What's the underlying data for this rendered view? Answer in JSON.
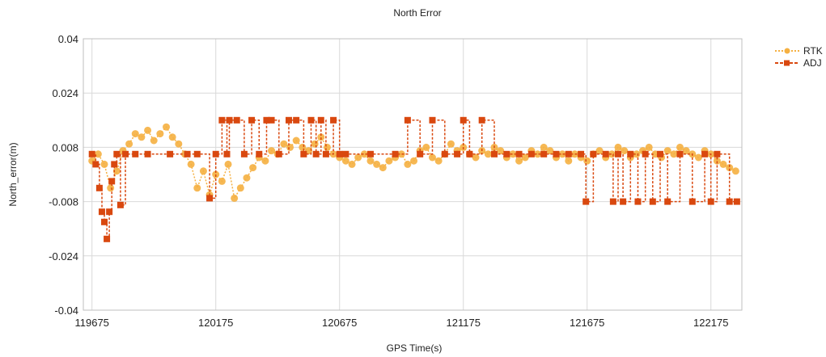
{
  "chart_data": {
    "type": "line",
    "title": "North Error",
    "xlabel": "GPS Time(s)",
    "ylabel": "North_error(m)",
    "xlim": [
      119640,
      122300
    ],
    "ylim": [
      -0.04,
      0.04
    ],
    "x_ticks": [
      119675,
      120175,
      120675,
      121175,
      121675,
      122175
    ],
    "x_tick_labels": [
      "119675",
      "120175",
      "120675",
      "121175",
      "121675",
      "122175"
    ],
    "y_ticks": [
      -0.04,
      -0.024,
      -0.008,
      0.008,
      0.024,
      0.04
    ],
    "y_tick_labels": [
      "-0.04",
      "-0.024",
      "-0.008",
      "0.008",
      "0.024",
      "0.04"
    ],
    "grid": true,
    "legend_position": "top-right",
    "series": [
      {
        "name": "RTK",
        "color": "#f5b041",
        "line_style": "dotted",
        "marker": "circle",
        "x": [
          119675,
          119700,
          119725,
          119750,
          119775,
          119800,
          119825,
          119850,
          119875,
          119900,
          119925,
          119950,
          119975,
          120000,
          120025,
          120050,
          120075,
          120100,
          120125,
          120150,
          120175,
          120200,
          120225,
          120250,
          120275,
          120300,
          120325,
          120350,
          120375,
          120400,
          120425,
          120450,
          120475,
          120500,
          120525,
          120550,
          120575,
          120600,
          120625,
          120650,
          120675,
          120700,
          120725,
          120750,
          120775,
          120800,
          120825,
          120850,
          120875,
          120900,
          120925,
          120950,
          120975,
          121000,
          121025,
          121050,
          121075,
          121100,
          121125,
          121150,
          121175,
          121200,
          121225,
          121250,
          121275,
          121300,
          121325,
          121350,
          121375,
          121400,
          121425,
          121450,
          121475,
          121500,
          121525,
          121550,
          121575,
          121600,
          121625,
          121650,
          121675,
          121700,
          121725,
          121750,
          121775,
          121800,
          121825,
          121850,
          121875,
          121900,
          121925,
          121950,
          121975,
          122000,
          122025,
          122050,
          122075,
          122100,
          122125,
          122150,
          122175,
          122200,
          122225,
          122250,
          122275
        ],
        "y": [
          0.004,
          0.006,
          0.003,
          -0.004,
          0.001,
          0.007,
          0.009,
          0.012,
          0.011,
          0.013,
          0.01,
          0.012,
          0.014,
          0.011,
          0.009,
          0.006,
          0.003,
          -0.004,
          0.001,
          -0.006,
          0.0,
          -0.002,
          0.003,
          -0.007,
          -0.004,
          -0.001,
          0.002,
          0.005,
          0.004,
          0.007,
          0.006,
          0.009,
          0.008,
          0.01,
          0.008,
          0.007,
          0.009,
          0.011,
          0.008,
          0.006,
          0.005,
          0.004,
          0.003,
          0.005,
          0.006,
          0.004,
          0.003,
          0.002,
          0.004,
          0.005,
          0.006,
          0.003,
          0.004,
          0.007,
          0.008,
          0.005,
          0.004,
          0.006,
          0.009,
          0.007,
          0.008,
          0.006,
          0.005,
          0.007,
          0.006,
          0.008,
          0.007,
          0.005,
          0.006,
          0.004,
          0.005,
          0.007,
          0.006,
          0.008,
          0.007,
          0.005,
          0.006,
          0.004,
          0.006,
          0.005,
          0.004,
          0.006,
          0.007,
          0.005,
          0.006,
          0.008,
          0.007,
          0.005,
          0.006,
          0.007,
          0.008,
          0.006,
          0.005,
          0.007,
          0.006,
          0.008,
          0.007,
          0.006,
          0.005,
          0.007,
          0.006,
          0.004,
          0.003,
          0.002,
          0.001
        ]
      },
      {
        "name": "ADJ",
        "color": "#d9480f",
        "line_style": "dashed",
        "marker": "square",
        "x": [
          119675,
          119690,
          119705,
          119715,
          119725,
          119735,
          119745,
          119755,
          119765,
          119775,
          119790,
          119810,
          119850,
          119900,
          119990,
          120060,
          120100,
          120150,
          120175,
          120200,
          120220,
          120230,
          120260,
          120290,
          120320,
          120350,
          120380,
          120400,
          120430,
          120470,
          120500,
          120530,
          120560,
          120580,
          120600,
          120620,
          120650,
          120675,
          120700,
          120800,
          120900,
          120950,
          121000,
          121050,
          121100,
          121150,
          121175,
          121200,
          121250,
          121300,
          121350,
          121400,
          121450,
          121500,
          121550,
          121600,
          121650,
          121670,
          121700,
          121750,
          121780,
          121800,
          121820,
          121850,
          121880,
          121910,
          121940,
          121970,
          122000,
          122050,
          122100,
          122150,
          122175,
          122200,
          122250,
          122280
        ],
        "y": [
          0.006,
          0.003,
          -0.004,
          -0.011,
          -0.014,
          -0.019,
          -0.011,
          -0.002,
          0.003,
          0.006,
          -0.009,
          0.006,
          0.006,
          0.006,
          0.006,
          0.006,
          0.006,
          -0.007,
          0.006,
          0.016,
          0.006,
          0.016,
          0.016,
          0.006,
          0.016,
          0.006,
          0.016,
          0.016,
          0.006,
          0.016,
          0.016,
          0.006,
          0.016,
          0.006,
          0.016,
          0.006,
          0.016,
          0.006,
          0.006,
          0.006,
          0.006,
          0.016,
          0.006,
          0.016,
          0.006,
          0.006,
          0.016,
          0.006,
          0.016,
          0.006,
          0.006,
          0.006,
          0.006,
          0.006,
          0.006,
          0.006,
          0.006,
          -0.008,
          0.006,
          0.006,
          -0.008,
          0.006,
          -0.008,
          0.006,
          -0.008,
          0.006,
          -0.008,
          0.006,
          -0.008,
          0.006,
          -0.008,
          0.006,
          -0.008,
          0.006,
          -0.008,
          -0.008
        ]
      }
    ]
  }
}
